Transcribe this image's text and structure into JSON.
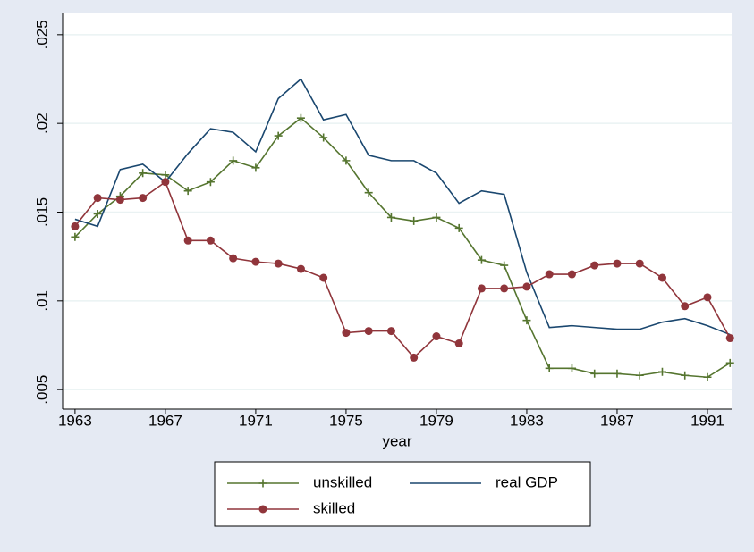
{
  "chart_data": {
    "type": "line",
    "x_label": "year",
    "x": [
      1963,
      1964,
      1965,
      1966,
      1967,
      1968,
      1969,
      1970,
      1971,
      1972,
      1973,
      1974,
      1975,
      1976,
      1977,
      1978,
      1979,
      1980,
      1981,
      1982,
      1983,
      1984,
      1985,
      1986,
      1987,
      1988,
      1989,
      1990,
      1991,
      1992
    ],
    "series": [
      {
        "name": "unskilled",
        "color": "#55752f",
        "marker": "plus",
        "values": [
          0.0136,
          0.0149,
          0.0159,
          0.0172,
          0.0171,
          0.0162,
          0.0167,
          0.0179,
          0.0175,
          0.0193,
          0.0203,
          0.0192,
          0.0179,
          0.0161,
          0.0147,
          0.0145,
          0.0147,
          0.0141,
          0.0123,
          0.012,
          0.0089,
          0.0062,
          0.0062,
          0.0059,
          0.0059,
          0.0058,
          0.006,
          0.0058,
          0.0057,
          0.0065
        ]
      },
      {
        "name": "real GDP",
        "color": "#1a476f",
        "marker": "none",
        "values": [
          0.0146,
          0.0142,
          0.0174,
          0.0177,
          0.0167,
          0.0183,
          0.0197,
          0.0195,
          0.0184,
          0.0214,
          0.0225,
          0.0202,
          0.0205,
          0.0182,
          0.0179,
          0.0179,
          0.0172,
          0.0155,
          0.0162,
          0.016,
          0.0116,
          0.0085,
          0.0086,
          0.0085,
          0.0084,
          0.0084,
          0.0088,
          0.009,
          0.0086,
          0.0081
        ]
      },
      {
        "name": "skilled",
        "color": "#90353b",
        "marker": "circle",
        "values": [
          0.0142,
          0.0158,
          0.0157,
          0.0158,
          0.0167,
          0.0134,
          0.0134,
          0.0124,
          0.0122,
          0.0121,
          0.0118,
          0.0113,
          0.0082,
          0.0083,
          0.0083,
          0.0068,
          0.008,
          0.0076,
          0.0107,
          0.0107,
          0.0108,
          0.0115,
          0.0115,
          0.012,
          0.0121,
          0.0121,
          0.0113,
          0.0097,
          0.0102,
          0.0079
        ]
      }
    ],
    "xlim": [
      1962.45,
      1992.07
    ],
    "xticks": [
      1963,
      1967,
      1971,
      1975,
      1979,
      1983,
      1987,
      1991
    ],
    "ylim": [
      0.0039,
      0.0262
    ],
    "yticks": [
      {
        "value": 0.005,
        "label": ".005"
      },
      {
        "value": 0.01,
        "label": ".01"
      },
      {
        "value": 0.015,
        "label": ".015"
      },
      {
        "value": 0.02,
        "label": ".02"
      },
      {
        "value": 0.025,
        "label": ".025"
      }
    ],
    "grid": true
  }
}
